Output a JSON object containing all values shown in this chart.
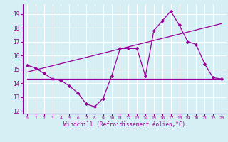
{
  "xlabel": "Windchill (Refroidissement éolien,°C)",
  "background_color": "#d6eff5",
  "grid_color": "#ffffff",
  "line_color": "#990099",
  "xlim": [
    -0.5,
    23.5
  ],
  "ylim": [
    11.8,
    19.7
  ],
  "yticks": [
    12,
    13,
    14,
    15,
    16,
    17,
    18,
    19
  ],
  "xticks": [
    0,
    1,
    2,
    3,
    4,
    5,
    6,
    7,
    8,
    9,
    10,
    11,
    12,
    13,
    14,
    15,
    16,
    17,
    18,
    19,
    20,
    21,
    22,
    23
  ],
  "series1_x": [
    0,
    1,
    2,
    3,
    4,
    5,
    6,
    7,
    8,
    9,
    10,
    11,
    12,
    13,
    14,
    15,
    16,
    17,
    18,
    19,
    20,
    21,
    22,
    23
  ],
  "series1_y": [
    15.3,
    15.1,
    14.7,
    14.3,
    14.2,
    13.8,
    13.3,
    12.5,
    12.3,
    12.9,
    14.5,
    16.5,
    16.5,
    16.5,
    14.5,
    17.8,
    18.5,
    19.2,
    18.2,
    17.0,
    16.8,
    15.4,
    14.4,
    14.3
  ],
  "series2_x": [
    0,
    23
  ],
  "series2_y": [
    14.8,
    18.3
  ],
  "series3_x": [
    0,
    23
  ],
  "series3_y": [
    14.3,
    14.3
  ]
}
